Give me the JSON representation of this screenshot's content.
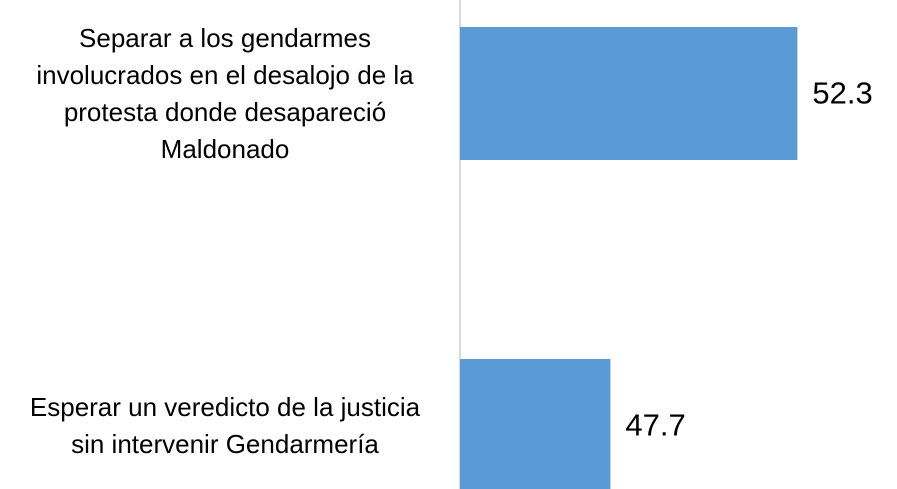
{
  "chart_data": {
    "type": "barh",
    "categories": [
      "Separar a los gendarmes involucrados en el desalojo de la protesta donde desapareció Maldonado",
      "Esperar un veredicto de la justicia sin intervenir Gendarmería"
    ],
    "values": [
      52.3,
      47.7
    ],
    "color": "#5b9bd5",
    "xlim": [
      44,
      54
    ]
  }
}
